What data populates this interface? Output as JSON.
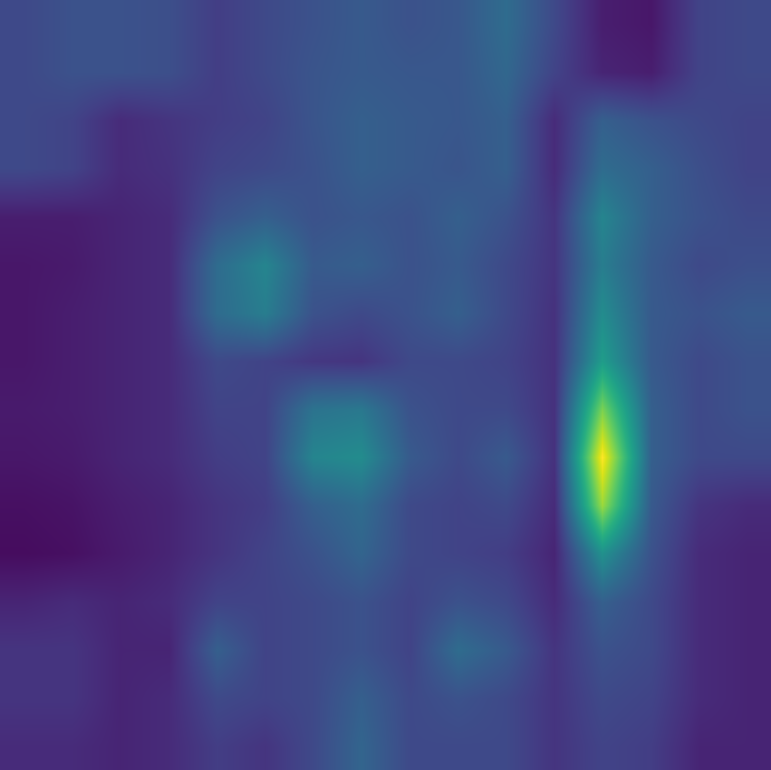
{
  "chart_data": {
    "type": "heatmap",
    "tick_labels": false,
    "zlim": [
      0,
      1
    ],
    "cells": [
      [
        0.22,
        0.25,
        0.25,
        0.24,
        0.18,
        0.22,
        0.25,
        0.28,
        0.25,
        0.27,
        0.35,
        0.22,
        0.08,
        0.06,
        0.2,
        0.22
      ],
      [
        0.22,
        0.25,
        0.25,
        0.24,
        0.18,
        0.22,
        0.26,
        0.28,
        0.27,
        0.27,
        0.33,
        0.2,
        0.1,
        0.08,
        0.2,
        0.22
      ],
      [
        0.22,
        0.2,
        0.12,
        0.15,
        0.18,
        0.2,
        0.26,
        0.3,
        0.28,
        0.27,
        0.3,
        0.12,
        0.3,
        0.25,
        0.22,
        0.2
      ],
      [
        0.22,
        0.2,
        0.12,
        0.14,
        0.2,
        0.22,
        0.25,
        0.3,
        0.28,
        0.26,
        0.3,
        0.12,
        0.35,
        0.3,
        0.24,
        0.2
      ],
      [
        0.08,
        0.08,
        0.1,
        0.12,
        0.25,
        0.3,
        0.25,
        0.27,
        0.25,
        0.3,
        0.25,
        0.15,
        0.45,
        0.3,
        0.25,
        0.22
      ],
      [
        0.06,
        0.07,
        0.1,
        0.12,
        0.35,
        0.45,
        0.28,
        0.3,
        0.25,
        0.28,
        0.22,
        0.15,
        0.42,
        0.28,
        0.22,
        0.24
      ],
      [
        0.06,
        0.08,
        0.1,
        0.12,
        0.35,
        0.42,
        0.25,
        0.22,
        0.25,
        0.3,
        0.22,
        0.14,
        0.48,
        0.28,
        0.25,
        0.28
      ],
      [
        0.06,
        0.08,
        0.1,
        0.12,
        0.22,
        0.2,
        0.16,
        0.15,
        0.22,
        0.22,
        0.2,
        0.14,
        0.55,
        0.28,
        0.22,
        0.25
      ],
      [
        0.07,
        0.08,
        0.1,
        0.12,
        0.2,
        0.2,
        0.38,
        0.4,
        0.25,
        0.22,
        0.22,
        0.14,
        0.8,
        0.3,
        0.22,
        0.25
      ],
      [
        0.06,
        0.07,
        0.1,
        0.12,
        0.18,
        0.2,
        0.45,
        0.48,
        0.28,
        0.22,
        0.28,
        0.14,
        1.0,
        0.3,
        0.22,
        0.22
      ],
      [
        0.04,
        0.05,
        0.08,
        0.1,
        0.15,
        0.18,
        0.3,
        0.35,
        0.22,
        0.2,
        0.22,
        0.12,
        0.85,
        0.28,
        0.15,
        0.12
      ],
      [
        0.03,
        0.04,
        0.07,
        0.1,
        0.15,
        0.2,
        0.25,
        0.32,
        0.22,
        0.2,
        0.18,
        0.1,
        0.5,
        0.25,
        0.12,
        0.1
      ],
      [
        0.1,
        0.12,
        0.1,
        0.12,
        0.2,
        0.2,
        0.22,
        0.25,
        0.2,
        0.25,
        0.22,
        0.12,
        0.3,
        0.22,
        0.12,
        0.1
      ],
      [
        0.15,
        0.15,
        0.1,
        0.1,
        0.3,
        0.2,
        0.22,
        0.25,
        0.2,
        0.35,
        0.28,
        0.15,
        0.25,
        0.22,
        0.12,
        0.1
      ],
      [
        0.15,
        0.15,
        0.1,
        0.12,
        0.22,
        0.2,
        0.22,
        0.3,
        0.22,
        0.25,
        0.22,
        0.15,
        0.22,
        0.2,
        0.12,
        0.1
      ],
      [
        0.12,
        0.12,
        0.1,
        0.12,
        0.18,
        0.15,
        0.22,
        0.32,
        0.22,
        0.22,
        0.22,
        0.15,
        0.2,
        0.18,
        0.1,
        0.1
      ]
    ]
  }
}
